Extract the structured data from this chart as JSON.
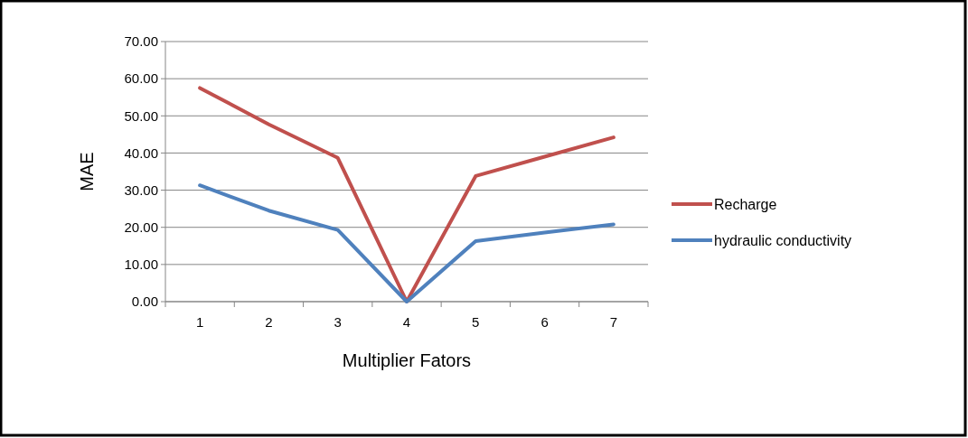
{
  "chart_data": {
    "type": "line",
    "xlabel": "Multiplier Fators",
    "ylabel": "MAE",
    "categories": [
      "1",
      "2",
      "3",
      "4",
      "5",
      "6",
      "7"
    ],
    "series": [
      {
        "name": "Recharge",
        "color": "#c0504d",
        "values": [
          57.5,
          47.7,
          38.7,
          0,
          33.8,
          39.0,
          44.2
        ]
      },
      {
        "name": "hydraulic conductivity",
        "color": "#4f81bd",
        "values": [
          31.3,
          24.5,
          19.3,
          0,
          16.3,
          18.6,
          20.8
        ]
      }
    ],
    "ylim": [
      0,
      70
    ],
    "yticks": [
      {
        "value": 0,
        "label": "0.00"
      },
      {
        "value": 10,
        "label": "10.00"
      },
      {
        "value": 20,
        "label": "20.00"
      },
      {
        "value": 30,
        "label": "30.00"
      },
      {
        "value": 40,
        "label": "40.00"
      },
      {
        "value": 50,
        "label": "50.00"
      },
      {
        "value": 60,
        "label": "60.00"
      },
      {
        "value": 70,
        "label": "70.00"
      }
    ],
    "grid": "y",
    "legend": "right",
    "marker": "none",
    "line_style": "solid"
  }
}
